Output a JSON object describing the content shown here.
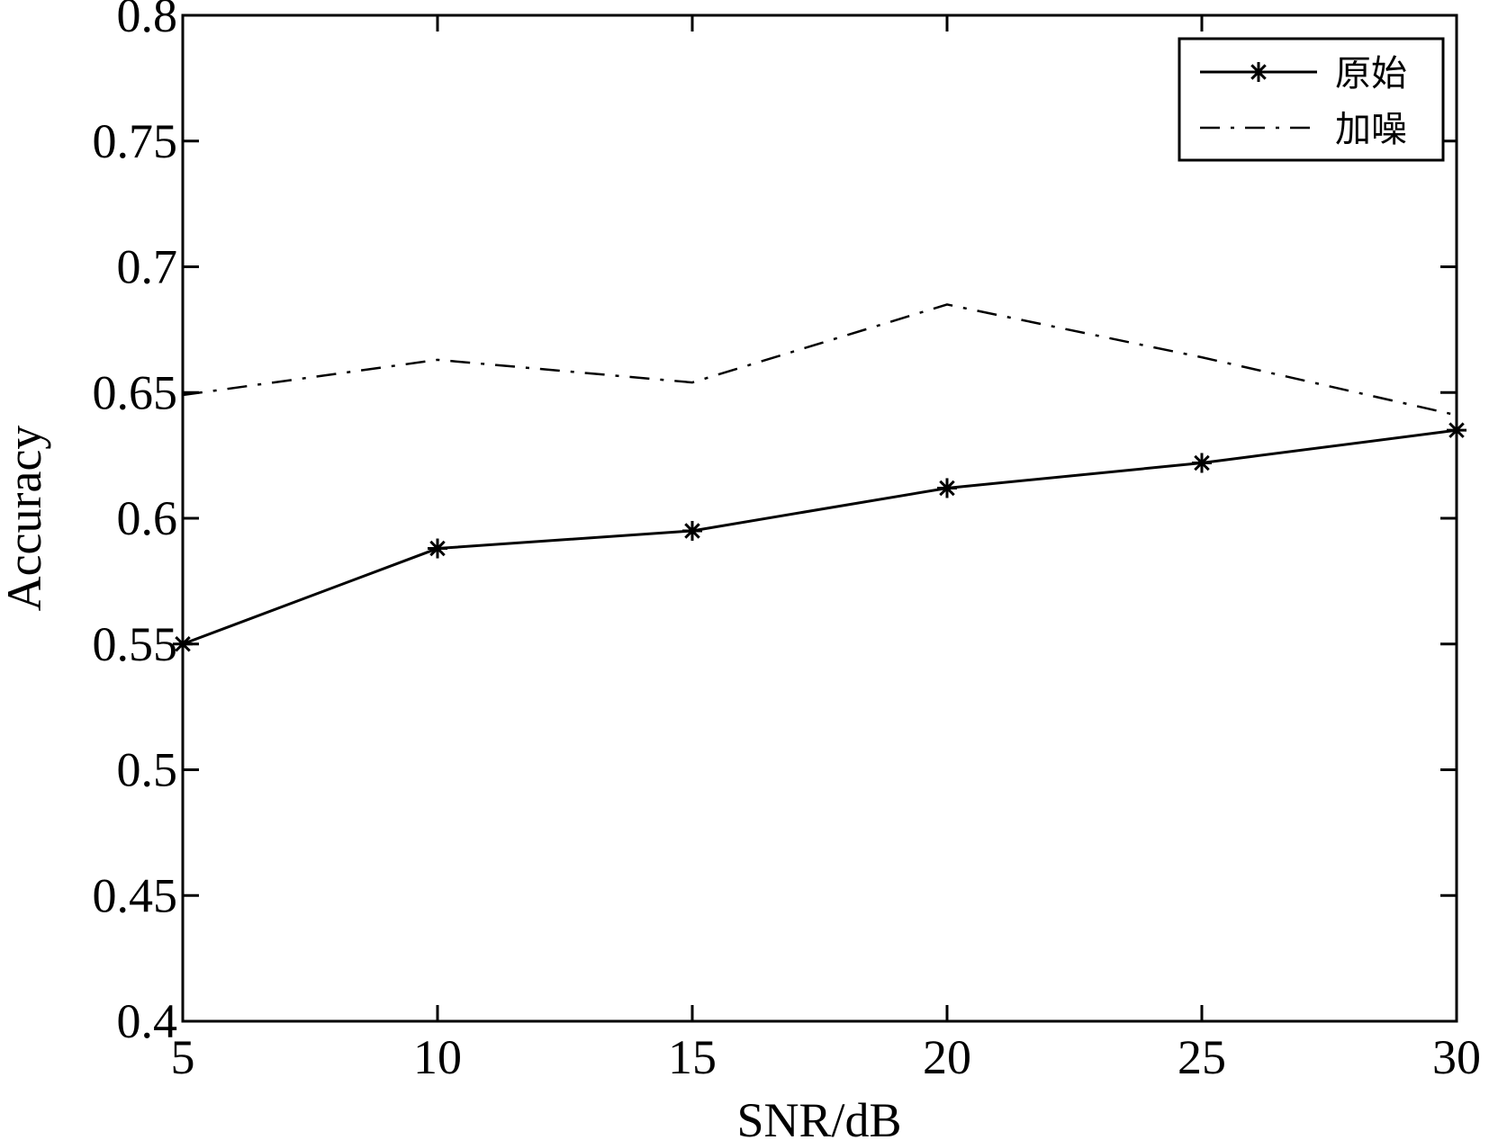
{
  "chart_data": {
    "type": "line",
    "title": "",
    "xlabel": "SNR/dB",
    "ylabel": "Accuracy",
    "xlim": [
      5,
      30
    ],
    "ylim": [
      0.4,
      0.8
    ],
    "x": [
      5,
      10,
      15,
      20,
      25,
      30
    ],
    "x_ticks": [
      "5",
      "10",
      "15",
      "20",
      "25",
      "30"
    ],
    "y_ticks": [
      "0.4",
      "0.45",
      "0.5",
      "0.55",
      "0.6",
      "0.65",
      "0.7",
      "0.75",
      "0.8"
    ],
    "y_tick_values": [
      0.4,
      0.45,
      0.5,
      0.55,
      0.6,
      0.65,
      0.7,
      0.75,
      0.8
    ],
    "grid": false,
    "legend_position": "top-right",
    "series": [
      {
        "name": "原始",
        "style": "solid-star",
        "color": "#000000",
        "values": [
          0.55,
          0.588,
          0.595,
          0.612,
          0.622,
          0.635
        ]
      },
      {
        "name": "加噪",
        "style": "dash-dot",
        "color": "#000000",
        "values": [
          0.649,
          0.663,
          0.654,
          0.685,
          0.664,
          0.641
        ]
      }
    ]
  }
}
